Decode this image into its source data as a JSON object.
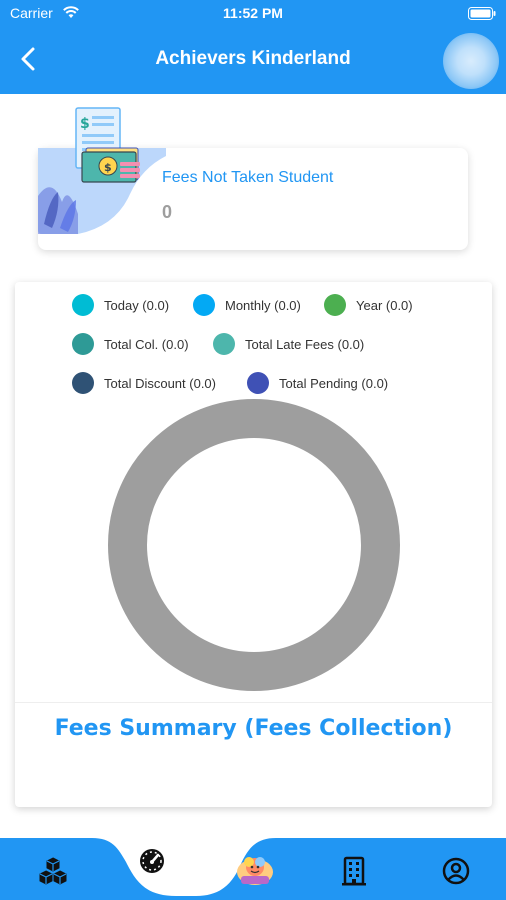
{
  "status_bar": {
    "carrier": "Carrier",
    "time": "11:52 PM"
  },
  "header": {
    "title": "Achievers Kinderland"
  },
  "fees_not_taken": {
    "label": "Fees Not Taken Student",
    "count": "0"
  },
  "legend": [
    {
      "label": "Today (0.0)",
      "color": "#00BCD4"
    },
    {
      "label": "Monthly (0.0)",
      "color": "#03A9F4"
    },
    {
      "label": "Year (0.0)",
      "color": "#4CAF50"
    },
    {
      "label": "Total Col. (0.0)",
      "color": "#2E9A96"
    },
    {
      "label": "Total Late Fees (0.0)",
      "color": "#4DB6AC"
    },
    {
      "label": "Total Discount (0.0)",
      "color": "#2F5275"
    },
    {
      "label": "Total Pending (0.0)",
      "color": "#3F51B5"
    }
  ],
  "chart_data": {
    "type": "pie",
    "categories": [
      "Today",
      "Monthly",
      "Year",
      "Total Col.",
      "Total Late Fees",
      "Total Discount",
      "Total Pending"
    ],
    "values": [
      0.0,
      0.0,
      0.0,
      0.0,
      0.0,
      0.0,
      0.0
    ],
    "empty_ring_color": "#9E9E9E",
    "title": "Fees Summary (Fees Collection)"
  },
  "summary": {
    "title": "Fees Summary (Fees Collection)"
  },
  "bottom_nav": {
    "accent": "#2196F3",
    "items": [
      {
        "icon": "cubes-icon"
      },
      {
        "icon": "dashboard-gauge-icon",
        "active": true
      },
      {
        "icon": "school-logo-icon"
      },
      {
        "icon": "building-icon"
      },
      {
        "icon": "profile-icon"
      }
    ]
  }
}
